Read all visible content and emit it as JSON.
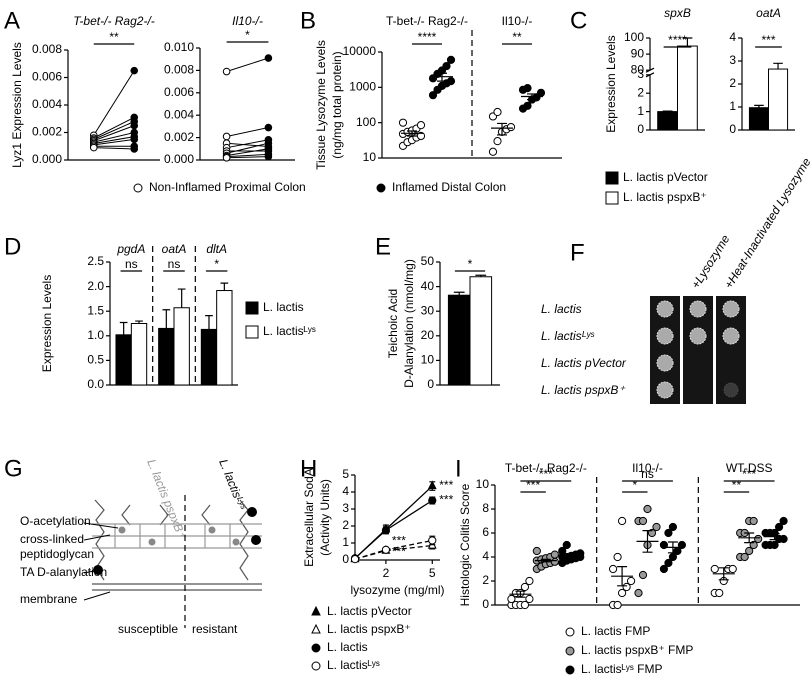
{
  "chart_data": [
    {
      "type": "paired",
      "panel": "A",
      "title": "T-bet-/- Rag2-/-",
      "ylabel": "Lyz1 Expression Levels",
      "ylim": [
        0,
        0.008
      ],
      "yticks": [
        {
          "value": 0,
          "label": "0.000"
        },
        {
          "value": 0.002,
          "label": "0.002"
        },
        {
          "value": 0.004,
          "label": "0.004"
        },
        {
          "value": 0.006,
          "label": "0.006"
        },
        {
          "value": 0.008,
          "label": "0.008"
        }
      ],
      "annotation": "**",
      "series": [
        {
          "name": "Non-Inflamed Proximal Colon",
          "color": "#ffffff",
          "values": [
            0.0018,
            0.0016,
            0.0015,
            0.0014,
            0.0013,
            0.0012,
            0.0011,
            0.001,
            0.0009
          ]
        },
        {
          "name": "Inflamed Distal Colon",
          "color": "#000000",
          "values": [
            0.0065,
            0.0031,
            0.0028,
            0.0025,
            0.002,
            0.0017,
            0.0015,
            0.001,
            0.0008
          ]
        }
      ]
    },
    {
      "type": "paired",
      "title": "Il10-/-",
      "ylim": [
        0,
        0.01
      ],
      "yticks": [
        {
          "value": 0,
          "label": "0.000"
        },
        {
          "value": 0.002,
          "label": "0.002"
        },
        {
          "value": 0.004,
          "label": "0.004"
        },
        {
          "value": 0.006,
          "label": "0.006"
        },
        {
          "value": 0.008,
          "label": "0.008"
        },
        {
          "value": 0.01,
          "label": "0.010"
        }
      ],
      "annotation": "*",
      "series": [
        {
          "color": "#ffffff",
          "values": [
            0.0079,
            0.0021,
            0.0015,
            0.0011,
            0.0008,
            0.0006,
            0.0004,
            0.0003,
            0.0002
          ]
        },
        {
          "color": "#000000",
          "values": [
            0.0091,
            0.0029,
            0.0012,
            0.0018,
            0.0008,
            0.0015,
            0.001,
            0.0005,
            0.0003
          ]
        }
      ]
    },
    {
      "type": "dotplot",
      "panel": "B",
      "log": true,
      "ylabel": [
        "Tissue Lysozyme Levels",
        "(ng/mg total protein)"
      ],
      "ylim": [
        10,
        10000
      ],
      "yticks": [
        10,
        100,
        1000,
        10000
      ],
      "groups": [
        "T-bet-/- Rag2-/-",
        "Il10-/-"
      ],
      "comparisons": [
        [
          "****"
        ],
        [
          "**"
        ]
      ],
      "series": [
        {
          "color": "#ffffff",
          "values": [
            [
              22,
              28,
              32,
              38,
              42,
              48,
              55,
              60,
              68,
              85,
              100
            ],
            [
              15,
              30,
              55,
              65,
              75,
              150,
              200
            ]
          ],
          "means": [
            50,
            70
          ],
          "sems": [
            8,
            25
          ]
        },
        {
          "color": "#000000",
          "values": [
            [
              600,
              850,
              1100,
              1300,
              1500,
              1800,
              2400,
              3000,
              4000,
              6000
            ],
            [
              250,
              300,
              450,
              520,
              700,
              850,
              950
            ]
          ],
          "means": [
            2000,
            550
          ],
          "sems": [
            500,
            100
          ]
        }
      ]
    },
    {
      "type": "bar",
      "panel": "C",
      "title": "spxB",
      "ylabel": "Expression Levels",
      "ylim": [
        0,
        100
      ],
      "ybreak": [
        3,
        80
      ],
      "yticks": [
        0,
        1,
        2,
        3,
        80,
        90,
        100
      ],
      "annotations": [
        "****"
      ],
      "series": [
        {
          "name": "L. lactis pVector",
          "color": "#000000",
          "values": [
            1
          ],
          "errors": [
            0.03
          ]
        },
        {
          "name": "L. lactis pspxB⁺",
          "color": "#ffffff",
          "values": [
            95
          ],
          "errors": [
            5
          ]
        }
      ]
    },
    {
      "type": "bar",
      "title": "oatA",
      "ylim": [
        0,
        4
      ],
      "yticks": [
        0,
        1,
        2,
        3,
        4
      ],
      "annotations": [
        "***"
      ],
      "series": [
        {
          "color": "#000000",
          "values": [
            0.97
          ],
          "errors": [
            0.1
          ]
        },
        {
          "color": "#ffffff",
          "values": [
            2.65
          ],
          "errors": [
            0.25
          ]
        }
      ]
    },
    {
      "type": "bar",
      "panel": "D",
      "ylabel": "Expression Levels",
      "categories": [
        "pgdA",
        "oatA",
        "dltA"
      ],
      "ylim": [
        0,
        2.5
      ],
      "yticks": [
        {
          "value": 0,
          "label": "0.0"
        },
        {
          "value": 0.5,
          "label": "0.5"
        },
        {
          "value": 1,
          "label": "1.0"
        },
        {
          "value": 1.5,
          "label": "1.5"
        },
        {
          "value": 2,
          "label": "2.0"
        },
        {
          "value": 2.5,
          "label": "2.5"
        }
      ],
      "annotations": [
        "ns",
        "ns",
        "*"
      ],
      "series": [
        {
          "name": "L. lactis",
          "color": "#000000",
          "values": [
            1.02,
            1.15,
            1.13
          ],
          "errors": [
            0.25,
            0.38,
            0.28
          ]
        },
        {
          "name": "L. lactisᴸʸˢ",
          "color": "#ffffff",
          "values": [
            1.25,
            1.57,
            1.92
          ],
          "errors": [
            0.05,
            0.38,
            0.15
          ]
        }
      ]
    },
    {
      "type": "bar",
      "panel": "E",
      "ylabel": [
        "Teichoic Acid",
        "D-Alanylation (nmol/mg)"
      ],
      "ylim": [
        0,
        50
      ],
      "yticks": [
        0,
        10,
        20,
        30,
        40,
        50
      ],
      "annotations": [
        "*"
      ],
      "series": [
        {
          "color": "#000000",
          "values": [
            36.5
          ],
          "errors": [
            1.2
          ]
        },
        {
          "color": "#ffffff",
          "values": [
            44
          ],
          "errors": [
            0.6
          ]
        }
      ]
    },
    {
      "type": "line",
      "panel": "H",
      "ylabel": [
        "Extracellular SodA",
        "(Activity Units)"
      ],
      "xlabel": "lysozyme (mg/ml)",
      "x": [
        0,
        2,
        5
      ],
      "xlim": [
        0,
        5.5
      ],
      "xticks": [
        2,
        5
      ],
      "ylim": [
        0,
        5
      ],
      "yticks": [
        0,
        1,
        2,
        3,
        4,
        5
      ],
      "series": [
        {
          "name": "L. lactis pVector",
          "color": "#000000",
          "marker": "triangle",
          "values": [
            0.1,
            1.8,
            4.35
          ],
          "errors": [
            0.05,
            0.25,
            0.25
          ],
          "labels": [
            null,
            "***",
            "***"
          ]
        },
        {
          "name": "L. lactis pspxB⁺",
          "color": "#ffffff",
          "marker": "triangle",
          "dash": true,
          "values": [
            0.05,
            0.55,
            0.85
          ],
          "errors": [
            0.05,
            0.1,
            0.2
          ]
        },
        {
          "name": "L. lactis",
          "color": "#000000",
          "marker": "circle",
          "values": [
            0.1,
            1.75,
            3.5
          ],
          "errors": [
            0.05,
            0.2,
            0.2
          ],
          "labels": [
            null,
            "***",
            "***"
          ]
        },
        {
          "name": "L. lactisᴸʸˢ",
          "color": "#ffffff",
          "marker": "circle",
          "dash": true,
          "values": [
            0.05,
            0.6,
            1.15
          ],
          "errors": [
            0.05,
            0.1,
            0.25
          ]
        }
      ]
    },
    {
      "type": "dotplot",
      "panel": "I",
      "ylabel": "Histologic Colitis Score",
      "ylim": [
        0,
        10
      ],
      "yticks": [
        0,
        2,
        4,
        6,
        8,
        10
      ],
      "groups": [
        "T-bet-/- Rag2-/-",
        "Il10-/-",
        "WT-DSS"
      ],
      "comparisons": [
        [
          "***",
          "***"
        ],
        [
          "*",
          "ns"
        ],
        [
          "**",
          "***"
        ]
      ],
      "series": [
        {
          "name": "L. lactis FMP",
          "color": "#ffffff",
          "values": [
            [
              0,
              0,
              0,
              0,
              0.5,
              0.5,
              1,
              1,
              1.5,
              2
            ],
            [
              0,
              0,
              1,
              1.5,
              2,
              3,
              4,
              7
            ],
            [
              1,
              1,
              2,
              3,
              3,
              3
            ]
          ],
          "means": [
            0.9,
            2.4,
            2.6
          ],
          "sems": [
            0.25,
            0.8,
            0.5
          ]
        },
        {
          "name": "L. lactis pspxB⁺ FMP",
          "color": "#999999",
          "values": [
            [
              3,
              3.2,
              3.4,
              3.5,
              3.6,
              3.7,
              3.8,
              3.9,
              4,
              4.2,
              4.5
            ],
            [
              1,
              2.5,
              5,
              6,
              6.5,
              7,
              7,
              8
            ],
            [
              4,
              4,
              4.5,
              5,
              5.5,
              6,
              6,
              7,
              7
            ]
          ],
          "means": [
            3.7,
            5.3,
            5.6
          ],
          "sems": [
            0.1,
            0.9,
            0.4
          ]
        },
        {
          "name": "L. lactisᴸʸˢ FMP",
          "color": "#000000",
          "values": [
            [
              3.5,
              3.7,
              3.8,
              3.9,
              4,
              4,
              4,
              4.1,
              4.2,
              4.3,
              4.5,
              5
            ],
            [
              3,
              3.5,
              4,
              4.5,
              5,
              5,
              6,
              6.5
            ],
            [
              5,
              5,
              5,
              5.5,
              5.5,
              6,
              6,
              6,
              6.5,
              7
            ]
          ],
          "means": [
            4,
            4.8,
            5.7
          ],
          "sems": [
            0.12,
            0.45,
            0.25
          ]
        }
      ]
    }
  ],
  "spot_assay": {
    "panel": "F",
    "columns": [
      "+Lysozyme",
      "+Heat-Inactivated Lysozyme"
    ],
    "rows": [
      "L. lactis",
      "L. lactisᴸʸˢ",
      "L. lactis pVector",
      "L. lactis pspxB⁺"
    ]
  },
  "diagram": {
    "panel": "G",
    "strains": [
      "L. lactis pspxB⁺",
      "L. lactisᴸʸˢ"
    ],
    "labels": [
      "O-acetylation",
      "cross-linked",
      "peptidoglycan",
      "TA D-alanylation",
      "membrane"
    ],
    "sides": [
      "susceptible",
      "resistant"
    ]
  }
}
